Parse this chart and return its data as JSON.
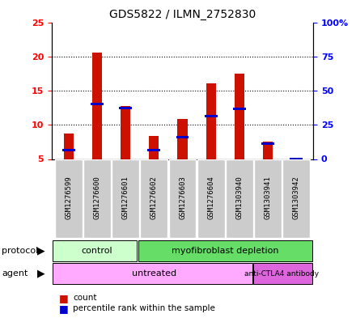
{
  "title": "GDS5822 / ILMN_2752830",
  "samples": [
    "GSM1276599",
    "GSM1276600",
    "GSM1276601",
    "GSM1276602",
    "GSM1276603",
    "GSM1276604",
    "GSM1303940",
    "GSM1303941",
    "GSM1303942"
  ],
  "counts": [
    8.7,
    20.6,
    12.8,
    8.4,
    10.9,
    16.1,
    17.5,
    7.6,
    5.0
  ],
  "percentile_rank": [
    6.3,
    13.1,
    12.5,
    6.3,
    8.2,
    11.3,
    12.3,
    7.3,
    5.0
  ],
  "ylim_left": [
    5,
    25
  ],
  "ylim_right": [
    0,
    100
  ],
  "yticks_left": [
    5,
    10,
    15,
    20,
    25
  ],
  "ytick_labels_left": [
    "5",
    "10",
    "15",
    "20",
    "25"
  ],
  "yticks_right": [
    0,
    25,
    50,
    75,
    100
  ],
  "ytick_labels_right": [
    "0",
    "25",
    "50",
    "75",
    "100%"
  ],
  "bar_color": "#cc1100",
  "percentile_color": "#0000cc",
  "bar_width": 0.35,
  "bg_color": "#ffffff",
  "grid_color": "#000000",
  "protocol_label": "protocol",
  "agent_label": "agent",
  "legend_count_label": "count",
  "legend_pct_label": "percentile rank within the sample",
  "control_color": "#ccffcc",
  "myofib_color": "#66dd66",
  "untreated_color": "#ffaaff",
  "anti_color": "#dd66dd",
  "label_bg_color": "#cccccc"
}
